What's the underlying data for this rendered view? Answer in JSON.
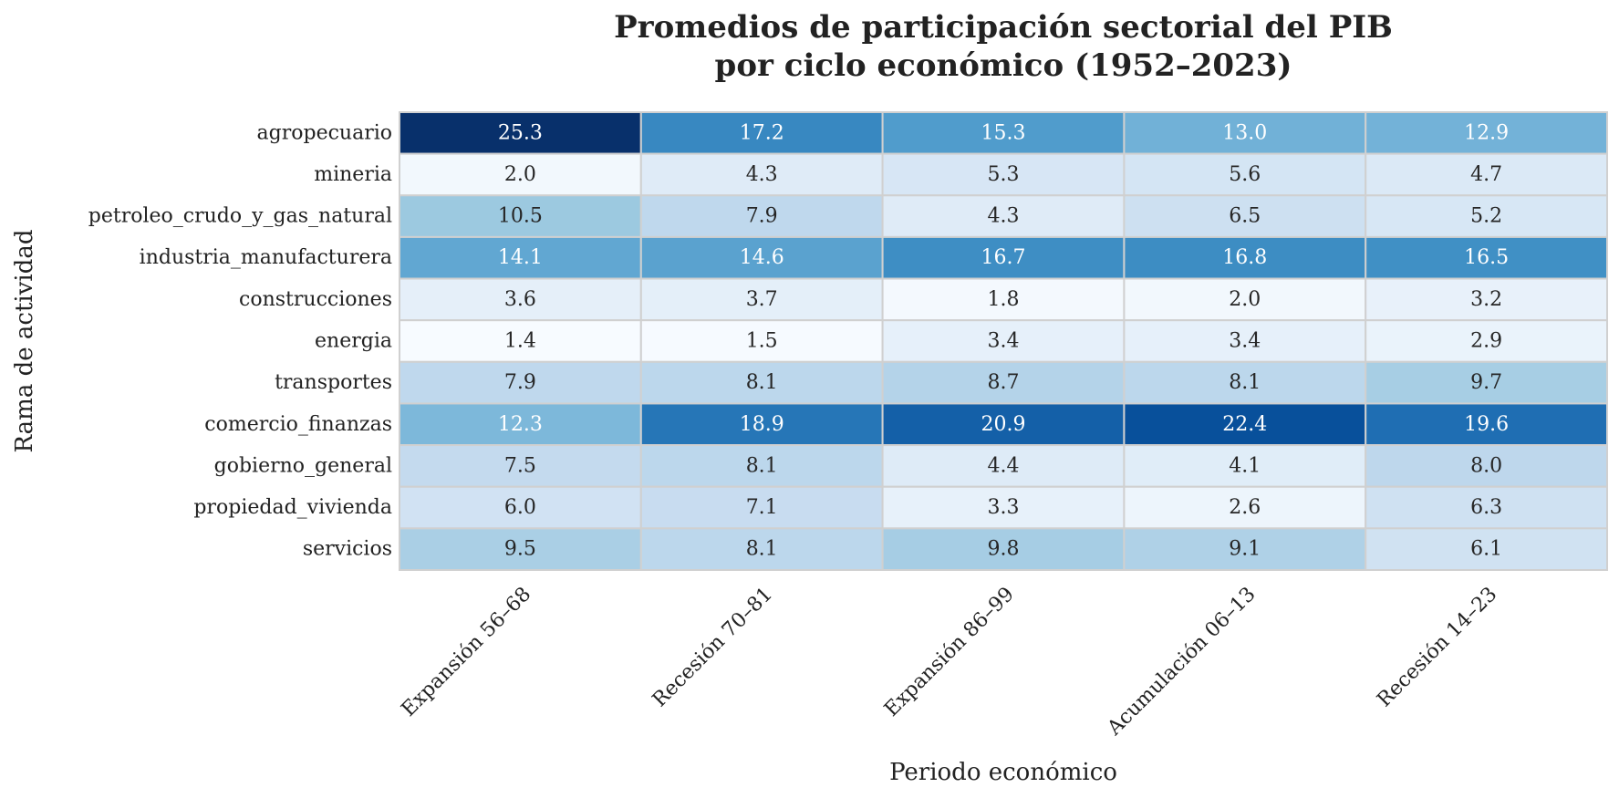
{
  "chart_data": {
    "type": "heatmap",
    "title": [
      "Promedios de participación sectorial del PIB",
      "por ciclo económico (1952–2023)"
    ],
    "xlabel": "Periodo económico",
    "ylabel": "Rama de actividad",
    "columns": [
      "Expansión 56–68",
      "Recesión 70–81",
      "Expansión 86–99",
      "Acumulación 06–13",
      "Recesión 14–23"
    ],
    "rows": [
      "agropecuario",
      "mineria",
      "petroleo_crudo_y_gas_natural",
      "industria_manufacturera",
      "construcciones",
      "energia",
      "transportes",
      "comercio_finanzas",
      "gobierno_general",
      "propiedad_vivienda",
      "servicios"
    ],
    "values": [
      [
        25.3,
        17.2,
        15.3,
        13.0,
        12.9
      ],
      [
        2.0,
        4.3,
        5.3,
        5.6,
        4.7
      ],
      [
        10.5,
        7.9,
        4.3,
        6.5,
        5.2
      ],
      [
        14.1,
        14.6,
        16.7,
        16.8,
        16.5
      ],
      [
        3.6,
        3.7,
        1.8,
        2.0,
        3.2
      ],
      [
        1.4,
        1.5,
        3.4,
        3.4,
        2.9
      ],
      [
        7.9,
        8.1,
        8.7,
        8.1,
        9.7
      ],
      [
        12.3,
        18.9,
        20.9,
        22.4,
        19.6
      ],
      [
        7.5,
        8.1,
        4.4,
        4.1,
        8.0
      ],
      [
        6.0,
        7.1,
        3.3,
        2.6,
        6.3
      ],
      [
        9.5,
        8.1,
        9.8,
        9.1,
        6.1
      ]
    ],
    "colormap": "Blues",
    "colormap_stops": [
      "#f7fbff",
      "#deebf7",
      "#c6dbef",
      "#9ecae1",
      "#6baed6",
      "#4292c6",
      "#2171b5",
      "#08519c",
      "#08306b"
    ],
    "cell_border_color": "#d0d0d0",
    "annotation_format": "0.0"
  }
}
